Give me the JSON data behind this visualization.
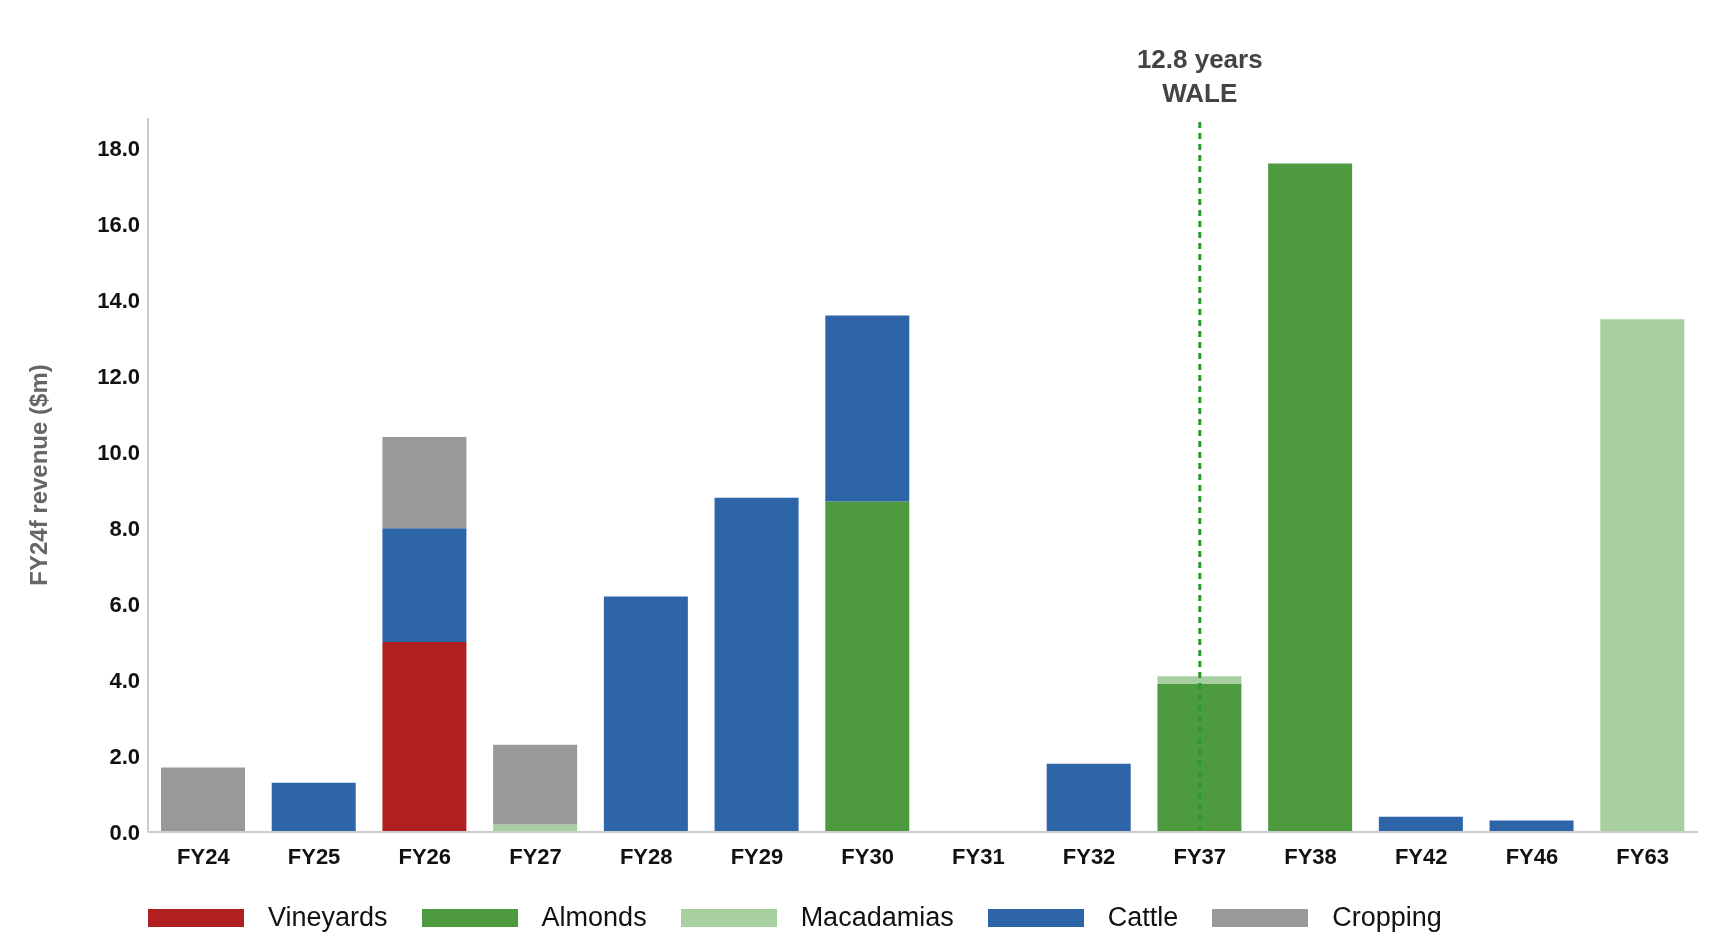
{
  "chart_data": {
    "type": "bar",
    "stacked": true,
    "ylabel": "FY24f revenue ($m)",
    "categories": [
      "FY24",
      "FY25",
      "FY26",
      "FY27",
      "FY28",
      "FY29",
      "FY30",
      "FY31",
      "FY32",
      "FY37",
      "FY38",
      "FY42",
      "FY46",
      "FY63"
    ],
    "series": [
      {
        "name": "Vineyards",
        "color": "#b02020",
        "values": [
          null,
          null,
          5.0,
          null,
          null,
          null,
          null,
          null,
          null,
          null,
          null,
          null,
          null,
          null
        ]
      },
      {
        "name": "Almonds",
        "color": "#4e9a3e",
        "values": [
          null,
          null,
          null,
          null,
          null,
          null,
          8.7,
          null,
          null,
          3.9,
          17.6,
          null,
          null,
          null
        ]
      },
      {
        "name": "Macadamias",
        "color": "#a8cfa0",
        "values": [
          null,
          null,
          null,
          0.2,
          null,
          null,
          null,
          null,
          null,
          0.2,
          null,
          null,
          null,
          13.5
        ]
      },
      {
        "name": "Cattle",
        "color": "#2e64a8",
        "values": [
          null,
          1.3,
          3.0,
          null,
          6.2,
          8.8,
          4.9,
          null,
          1.8,
          null,
          null,
          0.4,
          0.3,
          null
        ]
      },
      {
        "name": "Cropping",
        "color": "#999999",
        "values": [
          1.7,
          null,
          2.4,
          2.1,
          null,
          null,
          null,
          null,
          null,
          null,
          null,
          null,
          null,
          null
        ]
      }
    ],
    "ylim": [
      0,
      18.8
    ],
    "yticks": [
      {
        "value": 0,
        "label": "0.0"
      },
      {
        "value": 2,
        "label": "2.0"
      },
      {
        "value": 4,
        "label": "4.0"
      },
      {
        "value": 6,
        "label": "6.0"
      },
      {
        "value": 8,
        "label": "8.0"
      },
      {
        "value": 10,
        "label": "10.0"
      },
      {
        "value": 12,
        "label": "12.0"
      },
      {
        "value": 14,
        "label": "14.0"
      },
      {
        "value": 16,
        "label": "16.0"
      },
      {
        "value": 18,
        "label": "18.0"
      }
    ],
    "ref_lines": [
      {
        "axis": "x",
        "value": "FY37",
        "label": "12.8 years\nWALE",
        "color": "#2a9a2a",
        "line_style": "dashed"
      }
    ],
    "grid": false,
    "legend": "bottom"
  }
}
